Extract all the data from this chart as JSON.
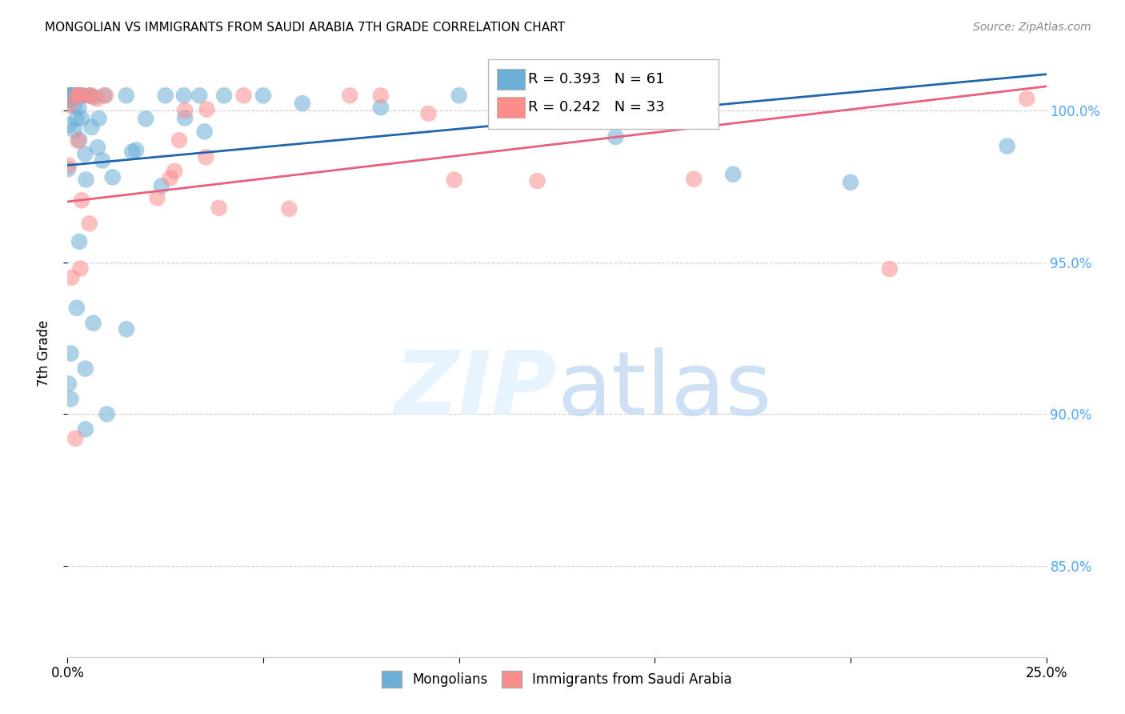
{
  "title": "MONGOLIAN VS IMMIGRANTS FROM SAUDI ARABIA 7TH GRADE CORRELATION CHART",
  "source": "Source: ZipAtlas.com",
  "ylabel": "7th Grade",
  "xmin": 0.0,
  "xmax": 25.0,
  "ymin": 82.0,
  "ymax": 102.0,
  "blue_R": 0.393,
  "blue_N": 61,
  "pink_R": 0.242,
  "pink_N": 33,
  "blue_color": "#6baed6",
  "pink_color": "#fc8d8d",
  "blue_line_color": "#2166ac",
  "pink_line_color": "#e8607a",
  "legend_label_blue": "Mongolians",
  "legend_label_pink": "Immigrants from Saudi Arabia",
  "y_ticks": [
    85.0,
    90.0,
    95.0,
    100.0
  ],
  "y_tick_labels": [
    "85.0%",
    "90.0%",
    "95.0%",
    "100.0%"
  ],
  "blue_trend": [
    98.2,
    101.2
  ],
  "pink_trend": [
    97.0,
    100.8
  ],
  "watermark_zip": "ZIP",
  "watermark_atlas": "atlas",
  "right_tick_color": "#4da6ff"
}
